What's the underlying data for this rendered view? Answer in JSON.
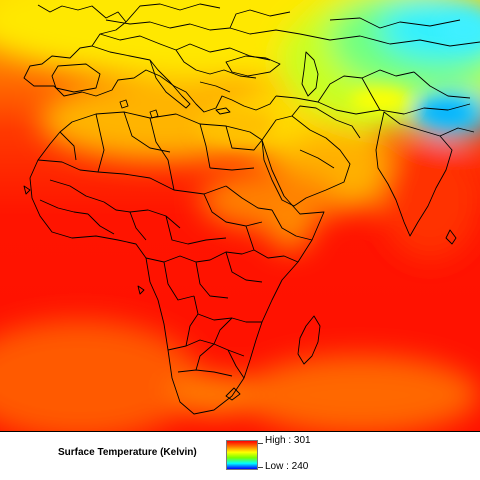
{
  "map": {
    "name": "surface-temperature-map",
    "colors": {
      "high": "#ff0000",
      "mid_orange": "#ff7800",
      "mid_yellow": "#ffff00",
      "mid_green": "#78ff00",
      "mid_cyan": "#00ffff",
      "low": "#0000ff",
      "borders": "#000000"
    }
  },
  "legend": {
    "title": "Surface Temperature (Kelvin)",
    "high_label": "High : 301",
    "low_label": "Low : 240",
    "high_value": 301,
    "low_value": 240
  }
}
